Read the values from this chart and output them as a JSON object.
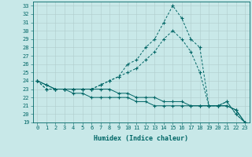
{
  "xlabel": "Humidex (Indice chaleur)",
  "background_color": "#c8e8e8",
  "line_color": "#006666",
  "xlim": [
    -0.5,
    23.5
  ],
  "ylim": [
    19,
    33.5
  ],
  "yticks": [
    19,
    20,
    21,
    22,
    23,
    24,
    25,
    26,
    27,
    28,
    29,
    30,
    31,
    32,
    33
  ],
  "xticks": [
    0,
    1,
    2,
    3,
    4,
    5,
    6,
    7,
    8,
    9,
    10,
    11,
    12,
    13,
    14,
    15,
    16,
    17,
    18,
    19,
    20,
    21,
    22,
    23
  ],
  "curve1_dashed": {
    "x": [
      0,
      1,
      2,
      3,
      4,
      5,
      6,
      7,
      8,
      9,
      10,
      11,
      12,
      13,
      14,
      15,
      16,
      17,
      18,
      19,
      20,
      21,
      22,
      23
    ],
    "y": [
      24.0,
      23.0,
      23.0,
      23.0,
      23.0,
      23.0,
      23.0,
      23.5,
      24.0,
      24.5,
      26.0,
      26.5,
      28.0,
      29.0,
      31.0,
      33.0,
      31.5,
      29.0,
      28.0,
      21.0,
      21.0,
      21.5,
      20.0,
      19.0
    ]
  },
  "curve2_dashed": {
    "x": [
      0,
      1,
      2,
      3,
      4,
      5,
      6,
      7,
      8,
      9,
      10,
      11,
      12,
      13,
      14,
      15,
      16,
      17,
      18,
      19,
      20,
      21,
      22,
      23
    ],
    "y": [
      24.0,
      23.0,
      23.0,
      23.0,
      23.0,
      23.0,
      23.0,
      23.5,
      24.0,
      24.5,
      25.0,
      25.5,
      26.5,
      27.5,
      29.0,
      30.0,
      29.0,
      27.5,
      25.0,
      21.0,
      21.0,
      21.5,
      20.0,
      19.0
    ]
  },
  "curve3_solid": {
    "x": [
      0,
      1,
      2,
      3,
      4,
      5,
      6,
      7,
      8,
      9,
      10,
      11,
      12,
      13,
      14,
      15,
      16,
      17,
      18,
      19,
      20,
      21,
      22,
      23
    ],
    "y": [
      24.0,
      23.5,
      23.0,
      23.0,
      22.5,
      22.5,
      22.0,
      22.0,
      22.0,
      22.0,
      22.0,
      21.5,
      21.5,
      21.0,
      21.0,
      21.0,
      21.0,
      21.0,
      21.0,
      21.0,
      21.0,
      21.0,
      20.5,
      19.0
    ]
  },
  "curve4_solid": {
    "x": [
      0,
      1,
      2,
      3,
      4,
      5,
      6,
      7,
      8,
      9,
      10,
      11,
      12,
      13,
      14,
      15,
      16,
      17,
      18,
      19,
      20,
      21,
      22,
      23
    ],
    "y": [
      24.0,
      23.5,
      23.0,
      23.0,
      23.0,
      23.0,
      23.0,
      23.0,
      23.0,
      22.5,
      22.5,
      22.0,
      22.0,
      22.0,
      21.5,
      21.5,
      21.5,
      21.0,
      21.0,
      21.0,
      21.0,
      21.0,
      20.5,
      19.0
    ]
  },
  "tick_fontsize": 5,
  "xlabel_fontsize": 6,
  "grid_color": "#b0cccc",
  "grid_linewidth": 0.4
}
